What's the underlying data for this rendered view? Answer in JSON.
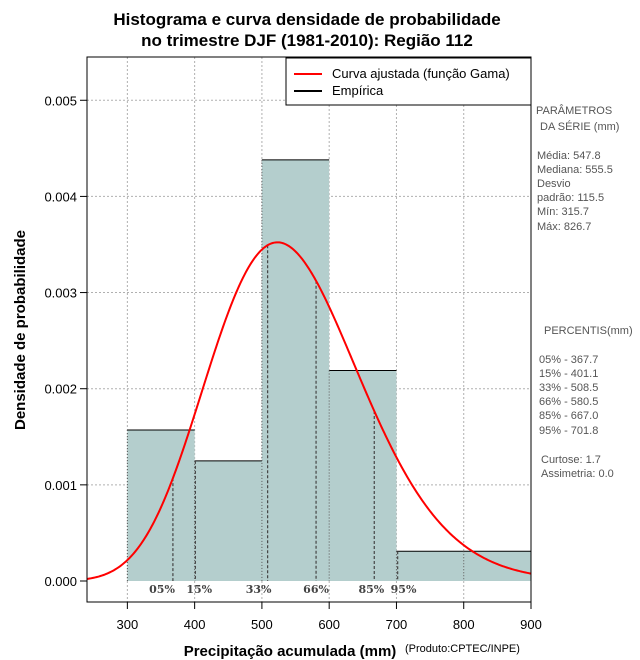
{
  "chart_data": {
    "type": "bar",
    "title_line1": "Histograma e curva densidade de probabilidade",
    "title_line2": "no trimestre DJF (1981-2010): Região 112",
    "xlabel": "Precipitação acumulada (mm)",
    "ylabel": "Densidade de probabilidade",
    "credit": "(Produto:CPTEC/INPE)",
    "xlim": [
      240,
      900
    ],
    "ylim": [
      0,
      0.00545
    ],
    "x_ticks": [
      "300",
      "400",
      "500",
      "600",
      "700",
      "800",
      "900"
    ],
    "y_ticks": [
      "0.000",
      "0.001",
      "0.002",
      "0.003",
      "0.004",
      "0.005"
    ],
    "bins": [
      {
        "from": 300,
        "to": 400,
        "density": 0.00157
      },
      {
        "from": 400,
        "to": 500,
        "density": 0.00125
      },
      {
        "from": 500,
        "to": 600,
        "density": 0.00438
      },
      {
        "from": 600,
        "to": 700,
        "density": 0.00219
      },
      {
        "from": 700,
        "to": 800,
        "density": 0.00031
      },
      {
        "from": 800,
        "to": 900,
        "density": 0.00031
      }
    ],
    "gamma_fit": {
      "shape": 22.5,
      "rate": 0.0411,
      "color": "#ff0000"
    },
    "bar_color": "#b4cecd",
    "legend": {
      "position": "top-right",
      "entries": [
        {
          "label": "Curva ajustada (função Gama)",
          "color": "#ff0000"
        },
        {
          "label": "Empírica",
          "color": "#000000"
        }
      ]
    },
    "percentile_marks": [
      {
        "label": "05%",
        "value": 367.7
      },
      {
        "label": "15%",
        "value": 401.1
      },
      {
        "label": "33%",
        "value": 508.5
      },
      {
        "label": "66%",
        "value": 580.5
      },
      {
        "label": "85%",
        "value": 667.0
      },
      {
        "label": "95%",
        "value": 701.8
      }
    ]
  },
  "parametros": {
    "heading1": "PARÂMETROS",
    "heading2": "DA SÉRIE (mm)",
    "media": "Média:  547.8",
    "mediana": "Mediana:  555.5",
    "desvio1": "Desvio",
    "desvio2": "padrão:  115.5",
    "min": "Mín:  315.7",
    "max": "Máx:  826.7"
  },
  "percentis": {
    "heading": "PERCENTIS(mm)",
    "p05": "05% -   367.7",
    "p15": "15% -   401.1",
    "p33": "33% -   508.5",
    "p66": "66% -   580.5",
    "p85": "85% -   667.0",
    "p95": "95% -   701.8",
    "curtose": "Curtose:   1.7",
    "assimetria": "Assimetria:  0.0"
  }
}
